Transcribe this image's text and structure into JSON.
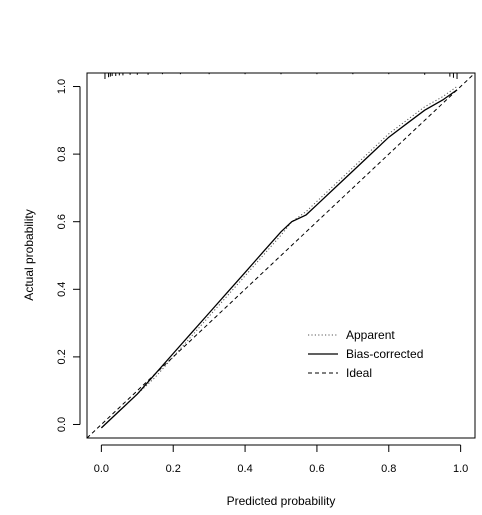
{
  "chart_data": {
    "type": "line",
    "title": "",
    "xlabel": "Predicted probability",
    "ylabel": "Actual probability",
    "xlim": [
      -0.04,
      1.04
    ],
    "ylim": [
      -0.04,
      1.04
    ],
    "xticks": [
      0.0,
      0.2,
      0.4,
      0.6,
      0.8,
      1.0
    ],
    "yticks": [
      0.0,
      0.2,
      0.4,
      0.6,
      0.8,
      1.0
    ],
    "xtick_labels": [
      "0.0",
      "0.2",
      "0.4",
      "0.6",
      "0.8",
      "1.0"
    ],
    "ytick_labels": [
      "0.0",
      "0.2",
      "0.4",
      "0.6",
      "0.8",
      "1.0"
    ],
    "grid": false,
    "legend_position": "bottom-right",
    "series": [
      {
        "name": "Apparent",
        "line_style": "dotted",
        "color": "#555555",
        "x": [
          0.0,
          0.05,
          0.1,
          0.15,
          0.2,
          0.25,
          0.3,
          0.35,
          0.4,
          0.45,
          0.5,
          0.53,
          0.57,
          0.6,
          0.65,
          0.7,
          0.75,
          0.8,
          0.85,
          0.9,
          0.95,
          0.99
        ],
        "y": [
          -0.01,
          0.04,
          0.09,
          0.14,
          0.2,
          0.26,
          0.32,
          0.38,
          0.44,
          0.5,
          0.56,
          0.6,
          0.63,
          0.66,
          0.71,
          0.76,
          0.81,
          0.86,
          0.9,
          0.94,
          0.97,
          1.0
        ]
      },
      {
        "name": "Bias-corrected",
        "line_style": "solid",
        "color": "#000000",
        "x": [
          0.0,
          0.05,
          0.1,
          0.15,
          0.2,
          0.25,
          0.3,
          0.35,
          0.4,
          0.45,
          0.5,
          0.53,
          0.57,
          0.6,
          0.65,
          0.7,
          0.75,
          0.8,
          0.85,
          0.9,
          0.95,
          0.99
        ],
        "y": [
          -0.01,
          0.04,
          0.09,
          0.15,
          0.21,
          0.27,
          0.33,
          0.39,
          0.45,
          0.51,
          0.57,
          0.6,
          0.62,
          0.65,
          0.7,
          0.75,
          0.8,
          0.85,
          0.89,
          0.93,
          0.96,
          0.99
        ]
      },
      {
        "name": "Ideal",
        "line_style": "dashed",
        "color": "#000000",
        "x": [
          -0.04,
          1.04
        ],
        "y": [
          -0.04,
          1.04
        ]
      }
    ],
    "rug_top_x": [
      0.01,
      0.02,
      0.025,
      0.03,
      0.04,
      0.05,
      0.06,
      0.08,
      0.1,
      0.13,
      0.17,
      0.22,
      0.3,
      0.4,
      0.5,
      0.6,
      0.7,
      0.8,
      0.9,
      0.97,
      0.98,
      0.99
    ],
    "rug_top_heights": [
      1,
      0.7,
      0.6,
      0.5,
      0.5,
      0.4,
      0.4,
      0.3,
      0.3,
      0.3,
      0.2,
      0.2,
      0.2,
      0.2,
      0.2,
      0.2,
      0.2,
      0.2,
      0.3,
      0.6,
      0.8,
      1
    ]
  }
}
